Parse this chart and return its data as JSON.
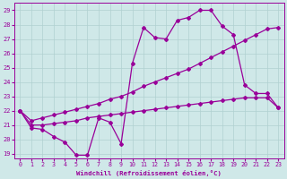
{
  "xlabel": "Windchill (Refroidissement éolien,°C)",
  "ylabel": "",
  "bg_color": "#cfe8e8",
  "line_color": "#990099",
  "grid_color": "#b0d0d0",
  "xlim": [
    -0.5,
    23.5
  ],
  "ylim": [
    18.7,
    29.5
  ],
  "xticks": [
    0,
    1,
    2,
    3,
    4,
    5,
    6,
    7,
    8,
    9,
    10,
    11,
    12,
    13,
    14,
    15,
    16,
    17,
    18,
    19,
    20,
    21,
    22,
    23
  ],
  "yticks": [
    19,
    20,
    21,
    22,
    23,
    24,
    25,
    26,
    27,
    28,
    29
  ],
  "curve_zigzag_x": [
    0,
    1,
    2,
    3,
    4,
    5,
    6,
    7,
    8,
    9,
    10,
    11,
    12,
    13,
    14,
    15,
    16,
    17,
    18,
    19,
    20,
    21,
    22,
    23
  ],
  "curve_zigzag_y": [
    22.0,
    20.8,
    20.7,
    20.2,
    19.8,
    18.9,
    18.9,
    21.5,
    21.2,
    19.7,
    25.3,
    27.8,
    27.1,
    27.0,
    28.3,
    28.5,
    29.0,
    29.0,
    27.9,
    27.3,
    23.8,
    23.2,
    23.2,
    22.2
  ],
  "curve_upper_x": [
    0,
    1,
    2,
    3,
    4,
    5,
    6,
    7,
    8,
    9,
    10,
    11,
    12,
    13,
    14,
    15,
    16,
    17,
    18,
    19,
    20,
    21,
    22,
    23
  ],
  "curve_upper_y": [
    22.0,
    21.3,
    21.5,
    21.7,
    21.9,
    22.1,
    22.3,
    22.5,
    22.8,
    23.0,
    23.3,
    23.7,
    24.0,
    24.3,
    24.6,
    24.9,
    25.3,
    25.7,
    26.1,
    26.5,
    26.9,
    27.3,
    27.7,
    27.8
  ],
  "curve_lower_x": [
    0,
    1,
    2,
    3,
    4,
    5,
    6,
    7,
    8,
    9,
    10,
    11,
    12,
    13,
    14,
    15,
    16,
    17,
    18,
    19,
    20,
    21,
    22,
    23
  ],
  "curve_lower_y": [
    22.0,
    21.0,
    21.0,
    21.1,
    21.2,
    21.3,
    21.5,
    21.6,
    21.7,
    21.8,
    21.9,
    22.0,
    22.1,
    22.2,
    22.3,
    22.4,
    22.5,
    22.6,
    22.7,
    22.8,
    22.9,
    22.9,
    22.9,
    22.2
  ]
}
